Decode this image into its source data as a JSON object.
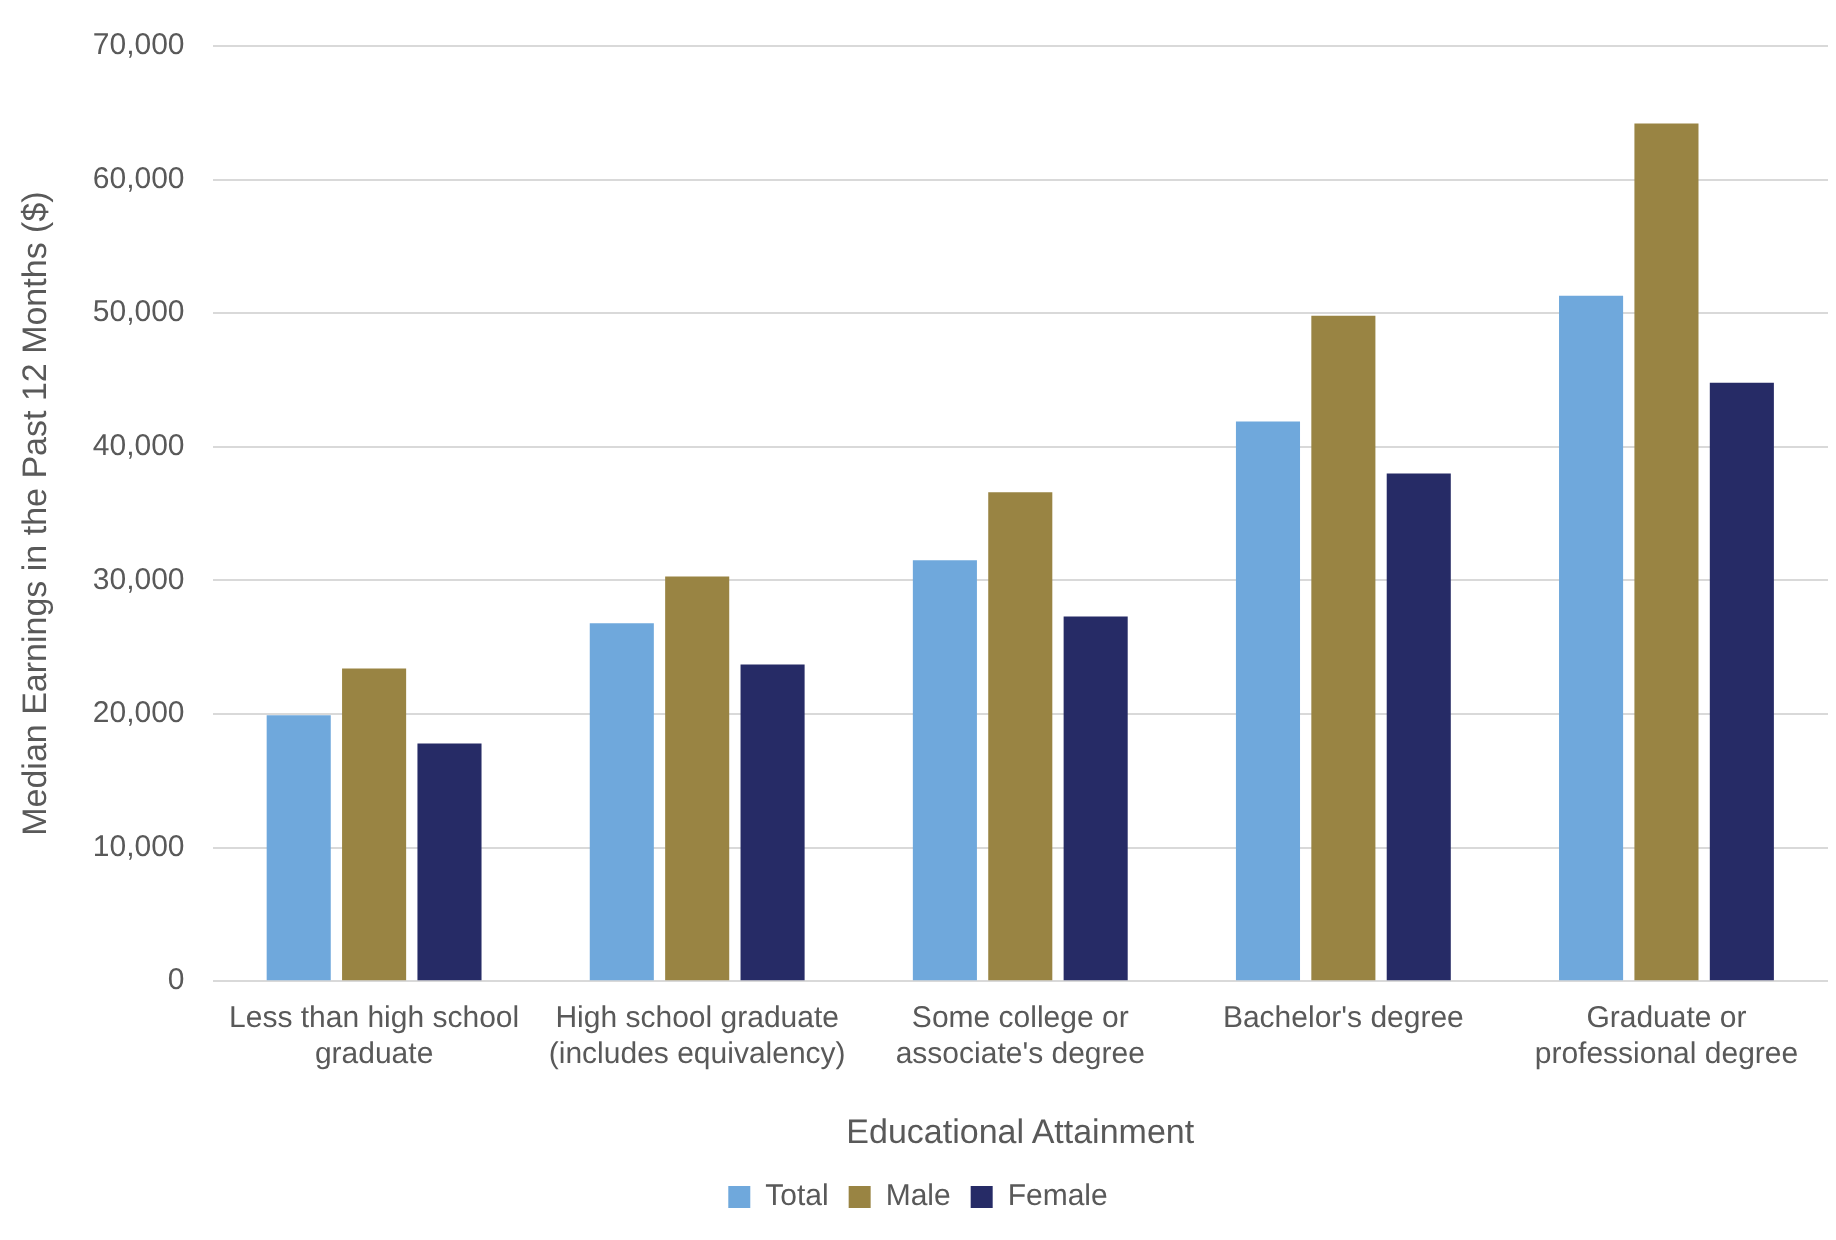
{
  "chart_data": {
    "type": "bar",
    "xlabel": "Educational Attainment",
    "ylabel": "Median Earnings in the Past 12 Months ($)",
    "categories": [
      "Less than high school graduate",
      "High school graduate (includes equivalency)",
      "Some college or associate's degree",
      "Bachelor's degree",
      "Graduate or professional degree"
    ],
    "series": [
      {
        "name": "Total",
        "color": "#6fa8dc",
        "values": [
          19900,
          26800,
          31500,
          41900,
          51300
        ]
      },
      {
        "name": "Male",
        "color": "#998443",
        "values": [
          23400,
          30300,
          36600,
          49800,
          64200
        ]
      },
      {
        "name": "Female",
        "color": "#262b66",
        "values": [
          17800,
          23700,
          27300,
          38000,
          44800
        ]
      }
    ],
    "ylim": [
      0,
      70000
    ],
    "yticks": [
      0,
      {
        "value": 10000,
        "label": "10,000"
      },
      {
        "value": 20000,
        "label": "20,000"
      },
      {
        "value": 30000,
        "label": "30,000"
      },
      {
        "value": 40000,
        "label": "40,000"
      },
      {
        "value": 50000,
        "label": "50,000"
      },
      {
        "value": 60000,
        "label": "60,000"
      },
      {
        "value": 70000,
        "label": "70,000"
      }
    ],
    "grid": "y",
    "legend": "bottom"
  }
}
